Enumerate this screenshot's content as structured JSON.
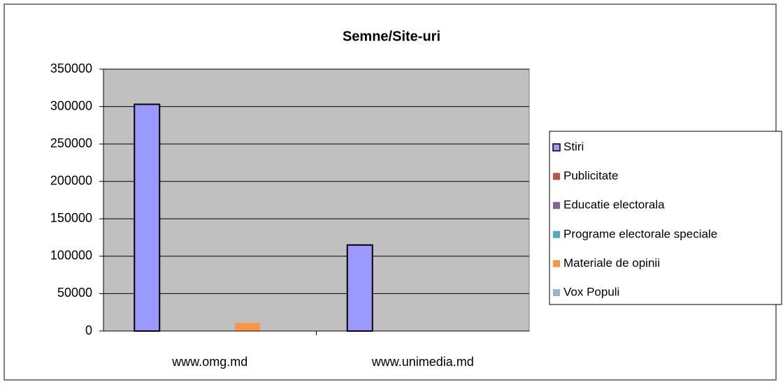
{
  "chart_data": {
    "type": "bar",
    "title": "Semne/Site-uri",
    "categories": [
      "www.omg.md",
      "www.unimedia.md"
    ],
    "series": [
      {
        "name": "Stiri",
        "color": "#9999ff",
        "values": [
          303000,
          115000
        ]
      },
      {
        "name": "Publicitate",
        "color": "#c0504d",
        "values": [
          0,
          0
        ]
      },
      {
        "name": "Educatie electorala",
        "color": "#8064a2",
        "values": [
          0,
          0
        ]
      },
      {
        "name": "Programe electorale speciale",
        "color": "#4bacc6",
        "values": [
          0,
          0
        ]
      },
      {
        "name": "Materiale de opinii",
        "color": "#f79646",
        "values": [
          11000,
          0
        ]
      },
      {
        "name": "Vox Populi",
        "color": "#95b3d7",
        "values": [
          0,
          0
        ]
      }
    ],
    "ylim": [
      0,
      350000
    ],
    "yticks": [
      0,
      50000,
      100000,
      150000,
      200000,
      250000,
      300000,
      350000
    ],
    "grid": true,
    "legend": "right",
    "plot_background": "#c0c0c0"
  }
}
